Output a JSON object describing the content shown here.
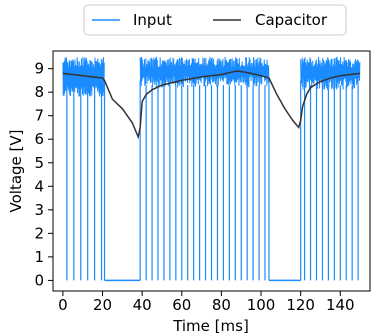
{
  "chart_data": {
    "type": "line",
    "xlabel": "Time [ms]",
    "ylabel": "Voltage [V]",
    "xlim": [
      -5,
      155
    ],
    "ylim": [
      -0.45,
      9.75
    ],
    "xticks": [
      0,
      20,
      40,
      60,
      80,
      100,
      120,
      140
    ],
    "yticks": [
      0,
      1,
      2,
      3,
      4,
      5,
      6,
      7,
      8,
      9
    ],
    "grid": false,
    "legend_position": "top-center",
    "colors": {
      "input": "#1a8cff",
      "capacitor": "#333333"
    },
    "series": [
      {
        "name": "Input",
        "description_type": "pwm",
        "high_segments": [
          {
            "x": [
              0,
              21
            ],
            "envelope_low": 7.8,
            "envelope_high": 9.5
          },
          {
            "x": [
              39,
              104
            ],
            "envelope_low": 8.2,
            "envelope_high": 9.5
          },
          {
            "x": [
              120,
              150
            ],
            "envelope_low": 8.1,
            "envelope_high": 9.5
          }
        ],
        "zero_spikes_x": [
          2,
          5.5,
          9,
          12.5,
          16,
          19.5,
          42,
          45,
          48,
          51,
          54,
          57,
          60,
          63,
          66,
          69,
          72,
          75,
          78,
          81,
          84,
          87,
          90,
          93,
          96,
          99,
          102,
          122,
          125,
          128,
          131,
          134,
          137,
          140,
          143,
          146,
          149
        ],
        "off_segments": [
          {
            "x": [
              21,
              39
            ],
            "y": 0
          },
          {
            "x": [
              104,
              120
            ],
            "y": 0
          }
        ]
      },
      {
        "name": "Capacitor",
        "x": [
          0,
          5,
          10,
          15,
          20,
          21,
          25,
          30,
          35,
          38,
          39,
          40,
          42,
          45,
          50,
          60,
          70,
          80,
          85,
          88,
          92,
          95,
          100,
          104,
          108,
          112,
          116,
          119,
          120,
          121,
          123,
          125,
          130,
          135,
          140,
          145,
          150
        ],
        "y": [
          8.8,
          8.75,
          8.7,
          8.65,
          8.6,
          8.5,
          7.7,
          7.3,
          6.7,
          6.1,
          6.5,
          7.6,
          7.9,
          8.1,
          8.3,
          8.5,
          8.65,
          8.75,
          8.85,
          8.9,
          8.85,
          8.8,
          8.7,
          8.6,
          7.9,
          7.3,
          6.8,
          6.5,
          6.8,
          7.4,
          7.9,
          8.2,
          8.45,
          8.6,
          8.7,
          8.75,
          8.8
        ]
      }
    ]
  }
}
